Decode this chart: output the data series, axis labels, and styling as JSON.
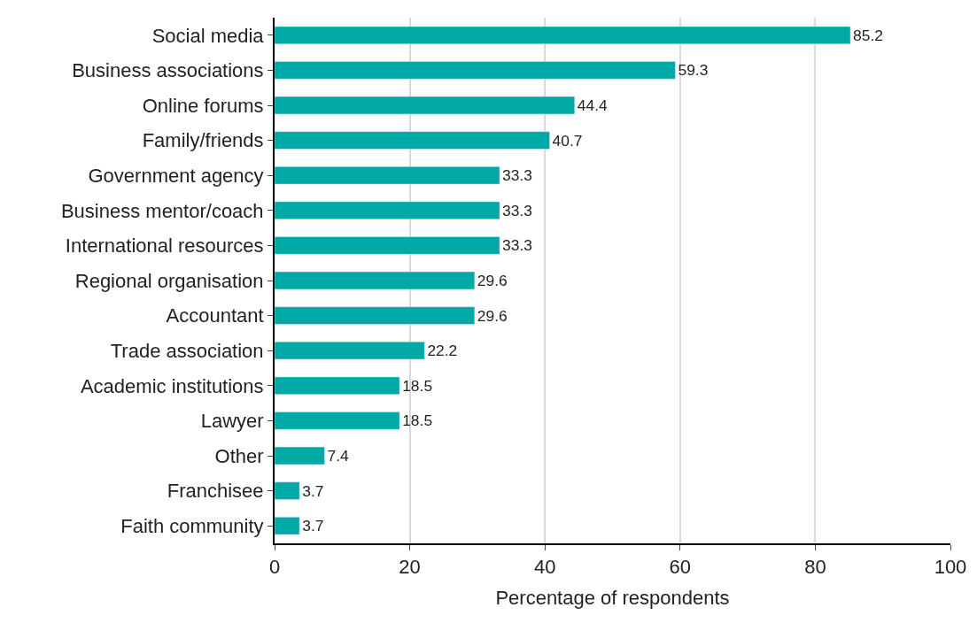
{
  "chart_data": {
    "type": "bar",
    "orientation": "horizontal",
    "xlabel": "Percentage of respondents",
    "categories": [
      "Social media",
      "Business associations",
      "Online forums",
      "Family/friends",
      "Government agency",
      "Business mentor/coach",
      "International resources",
      "Regional organisation",
      "Accountant",
      "Trade association",
      "Academic institutions",
      "Lawyer",
      "Other",
      "Franchisee",
      "Faith community"
    ],
    "values": [
      85.2,
      59.3,
      44.4,
      40.7,
      33.3,
      33.3,
      33.3,
      29.6,
      29.6,
      22.2,
      18.5,
      18.5,
      7.4,
      3.7,
      3.7
    ],
    "color": "#00a9a5",
    "xlim": [
      0,
      100
    ],
    "xticks": [
      0,
      20,
      40,
      60,
      80,
      100
    ],
    "grid": "x",
    "data_labels": true,
    "legend": false
  }
}
